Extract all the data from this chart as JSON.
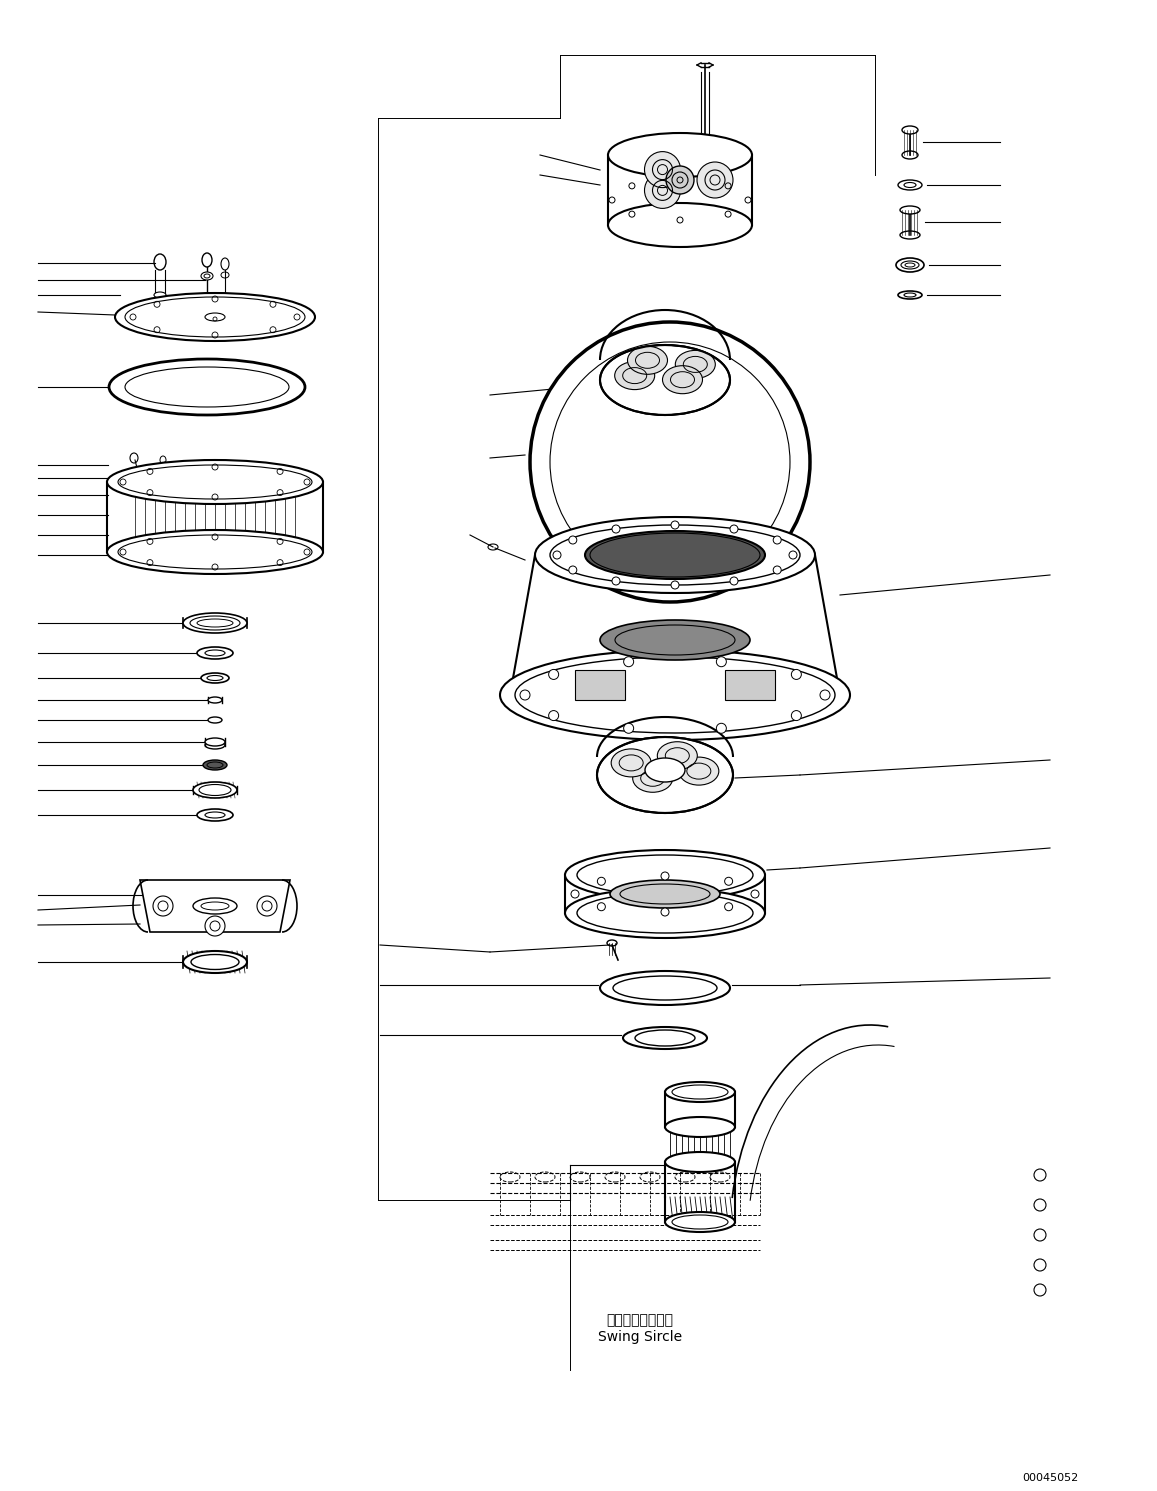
{
  "bg_color": "#ffffff",
  "line_color": "#000000",
  "text_color": "#000000",
  "diagram_id": "00045052",
  "label_swing": "スイングサークル",
  "label_swing_en": "Swing Sircle",
  "fig_width": 11.57,
  "fig_height": 14.91,
  "dpi": 100
}
